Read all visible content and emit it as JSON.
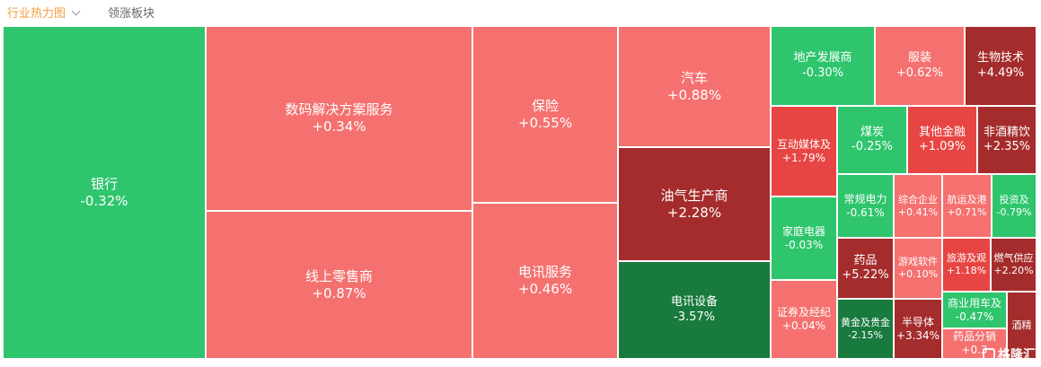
{
  "tabs": {
    "heatmap_label": "行业热力图",
    "rising_label": "领涨板块"
  },
  "colors": {
    "green": "#2ec56d",
    "light_green": "#34c870",
    "dark_green": "#197a3d",
    "light_red": "#f47170",
    "red": "#e74543",
    "dark_red": "#a52c2c"
  },
  "watermark": "格隆汇",
  "sectors": [
    {
      "name": "银行",
      "change": "-0.32%",
      "color": "#2ec56d"
    },
    {
      "name": "数码解决方案服务",
      "change": "+0.34%",
      "color": "#f47170"
    },
    {
      "name": "线上零售商",
      "change": "+0.87%",
      "color": "#f47170"
    },
    {
      "name": "保险",
      "change": "+0.55%",
      "color": "#f47170"
    },
    {
      "name": "电讯服务",
      "change": "+0.46%",
      "color": "#f47170"
    },
    {
      "name": "汽车",
      "change": "+0.88%",
      "color": "#f47170"
    },
    {
      "name": "油气生产商",
      "change": "+2.28%",
      "color": "#a52c2c"
    },
    {
      "name": "电讯设备",
      "change": "-3.57%",
      "color": "#197a3d"
    },
    {
      "name": "地产发展商",
      "change": "-0.30%",
      "color": "#2ec56d"
    },
    {
      "name": "服装",
      "change": "+0.62%",
      "color": "#f47170"
    },
    {
      "name": "生物技术",
      "change": "+4.49%",
      "color": "#a52c2c"
    },
    {
      "name": "互动媒体及",
      "change": "+1.79%",
      "color": "#e74543"
    },
    {
      "name": "煤炭",
      "change": "-0.25%",
      "color": "#2ec56d"
    },
    {
      "name": "其他金融",
      "change": "+1.09%",
      "color": "#e74543"
    },
    {
      "name": "非酒精饮",
      "change": "+2.35%",
      "color": "#a52c2c"
    },
    {
      "name": "家庭电器",
      "change": "-0.03%",
      "color": "#2ec56d"
    },
    {
      "name": "常规电力",
      "change": "-0.61%",
      "color": "#2ec56d"
    },
    {
      "name": "综合企业",
      "change": "+0.41%",
      "color": "#f47170"
    },
    {
      "name": "航运及港",
      "change": "+0.71%",
      "color": "#f47170"
    },
    {
      "name": "投资及",
      "change": "-0.79%",
      "color": "#2ec56d"
    },
    {
      "name": "药品",
      "change": "+5.22%",
      "color": "#a52c2c"
    },
    {
      "name": "游戏软件",
      "change": "+0.10%",
      "color": "#f47170"
    },
    {
      "name": "旅游及观",
      "change": "+1.18%",
      "color": "#e74543"
    },
    {
      "name": "燃气供应",
      "change": "+2.20%",
      "color": "#a52c2c"
    },
    {
      "name": "证券及经纪",
      "change": "+0.04%",
      "color": "#f47170"
    },
    {
      "name": "黄金及贵金",
      "change": "-2.15%",
      "color": "#197a3d"
    },
    {
      "name": "半导体",
      "change": "+3.34%",
      "color": "#a52c2c"
    },
    {
      "name": "商业用车及",
      "change": "-0.47%",
      "color": "#2ec56d"
    },
    {
      "name": "药品分销",
      "change": "+0.3",
      "color": "#f47170"
    },
    {
      "name": "酒精",
      "change": "",
      "color": "#a52c2c"
    }
  ]
}
